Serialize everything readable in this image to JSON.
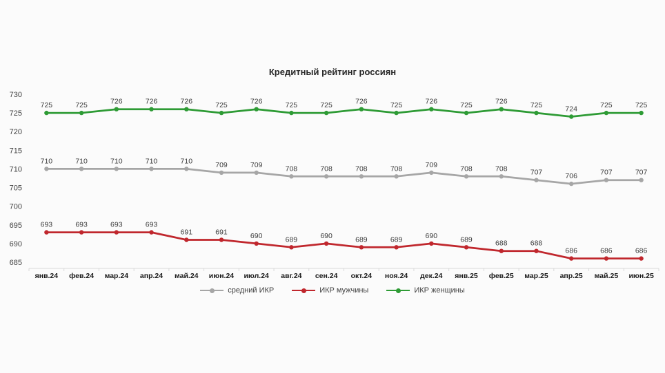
{
  "chart_data": {
    "type": "line",
    "title": "Кредитный рейтинг россиян",
    "categories": [
      "янв.24",
      "фев.24",
      "мар.24",
      "апр.24",
      "май.24",
      "июн.24",
      "июл.24",
      "авг.24",
      "сен.24",
      "окт.24",
      "ноя.24",
      "дек.24",
      "янв.25",
      "фев.25",
      "мар.25",
      "апр.25",
      "май.25",
      "июн.25"
    ],
    "series": [
      {
        "key": "average",
        "name": "средний ИКР",
        "color": "#a6a6a6",
        "values": [
          710,
          710,
          710,
          710,
          710,
          709,
          709,
          708,
          708,
          708,
          708,
          709,
          708,
          708,
          707,
          706,
          707,
          707
        ]
      },
      {
        "key": "men",
        "name": "ИКР мужчины",
        "color": "#c0272d",
        "values": [
          693,
          693,
          693,
          693,
          691,
          691,
          690,
          689,
          690,
          689,
          689,
          690,
          689,
          688,
          688,
          686,
          686,
          686
        ]
      },
      {
        "key": "women",
        "name": "ИКР женщины",
        "color": "#2e9b35",
        "values": [
          725,
          725,
          726,
          726,
          726,
          725,
          726,
          725,
          725,
          726,
          725,
          726,
          725,
          726,
          725,
          724,
          725,
          725
        ]
      }
    ],
    "ylim": [
      685,
      730
    ],
    "yticks": [
      685,
      690,
      695,
      700,
      705,
      710,
      715,
      720,
      725,
      730
    ],
    "grid": false,
    "legend_position": "bottom",
    "data_labels": true,
    "axis_color": "#d9d9d9"
  }
}
